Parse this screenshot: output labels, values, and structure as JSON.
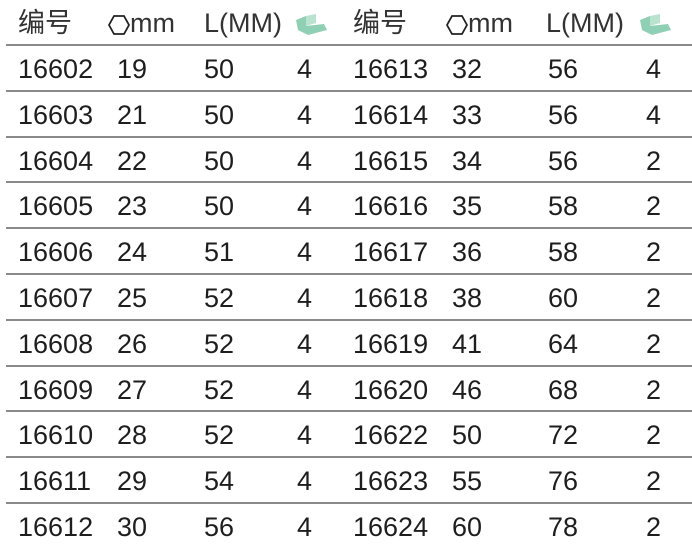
{
  "header": {
    "code": "编号",
    "size_unit": "mm",
    "length": "L(MM)",
    "size_icon": "hexagon-icon",
    "qty_icon": "tray-icon",
    "qty_icon_color": "#8fcfb4"
  },
  "rows": [
    {
      "left": [
        "16602",
        "19",
        "50",
        "4"
      ],
      "right": [
        "16613",
        "32",
        "56",
        "4"
      ]
    },
    {
      "left": [
        "16603",
        "21",
        "50",
        "4"
      ],
      "right": [
        "16614",
        "33",
        "56",
        "4"
      ]
    },
    {
      "left": [
        "16604",
        "22",
        "50",
        "4"
      ],
      "right": [
        "16615",
        "34",
        "56",
        "2"
      ]
    },
    {
      "left": [
        "16605",
        "23",
        "50",
        "4"
      ],
      "right": [
        "16616",
        "35",
        "58",
        "2"
      ]
    },
    {
      "left": [
        "16606",
        "24",
        "51",
        "4"
      ],
      "right": [
        "16617",
        "36",
        "58",
        "2"
      ]
    },
    {
      "left": [
        "16607",
        "25",
        "52",
        "4"
      ],
      "right": [
        "16618",
        "38",
        "60",
        "2"
      ]
    },
    {
      "left": [
        "16608",
        "26",
        "52",
        "4"
      ],
      "right": [
        "16619",
        "41",
        "64",
        "2"
      ]
    },
    {
      "left": [
        "16609",
        "27",
        "52",
        "4"
      ],
      "right": [
        "16620",
        "46",
        "68",
        "2"
      ]
    },
    {
      "left": [
        "16610",
        "28",
        "52",
        "4"
      ],
      "right": [
        "16622",
        "50",
        "72",
        "2"
      ]
    },
    {
      "left": [
        "16611",
        "29",
        "54",
        "4"
      ],
      "right": [
        "16623",
        "55",
        "76",
        "2"
      ]
    },
    {
      "left": [
        "16612",
        "30",
        "56",
        "4"
      ],
      "right": [
        "16624",
        "60",
        "78",
        "2"
      ]
    }
  ]
}
